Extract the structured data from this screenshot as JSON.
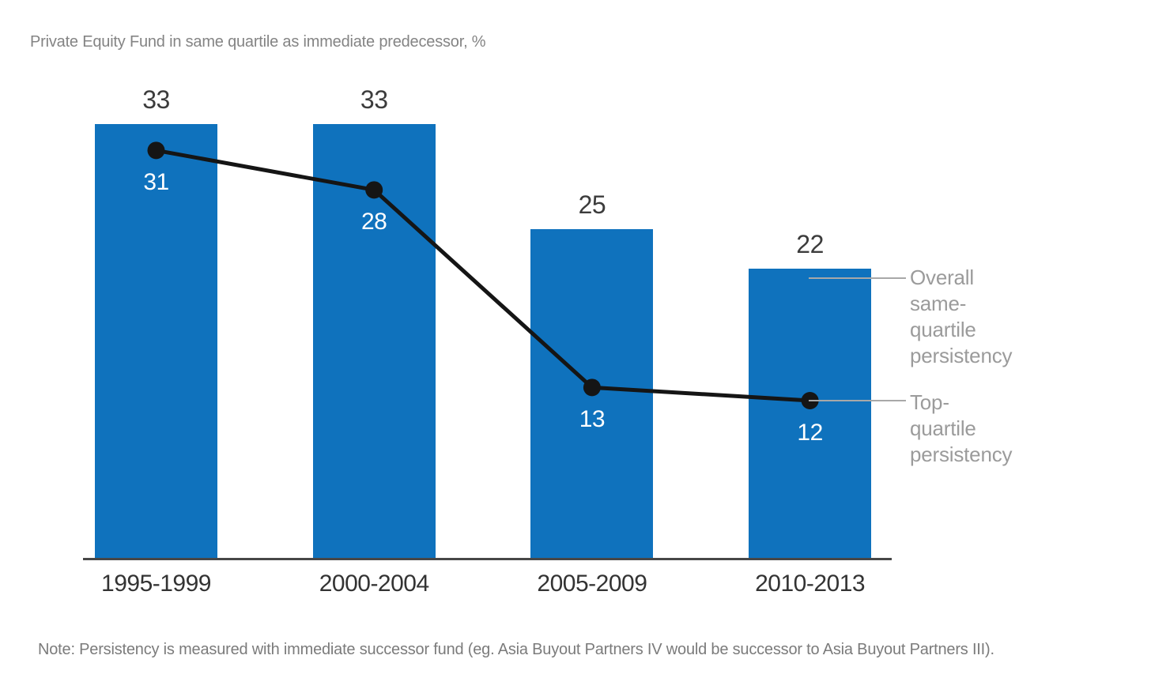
{
  "title": "Private Equity Fund in same quartile as immediate predecessor, %",
  "note": "Note: Persistency is measured with immediate successor fund (eg. Asia Buyout Partners IV would be successor to Asia Buyout Partners III).",
  "colors": {
    "bar": "#0f72bd",
    "line": "#151515",
    "bar_value_text": "#3c3c3c",
    "in_bar_value_text": "#ffffff",
    "axis": "#474747",
    "legend_text": "#9b9b9b",
    "connector": "#a8a8a8",
    "title_text": "#848484",
    "note_text": "#7b7b7b"
  },
  "chart_data": {
    "type": "bar",
    "categories": [
      "1995-1999",
      "2000-2004",
      "2005-2009",
      "2010-2013"
    ],
    "series": [
      {
        "name": "Overall same-quartile persistency",
        "type": "bar",
        "values": [
          33,
          33,
          25,
          22
        ]
      },
      {
        "name": "Top-quartile persistency",
        "type": "line",
        "values": [
          31,
          28,
          13,
          12
        ]
      }
    ],
    "title": "Private Equity Fund in same quartile as immediate predecessor, %",
    "xlabel": "",
    "ylabel": "",
    "ylim": [
      0,
      35
    ],
    "grid": false,
    "legend_position": "right-callouts",
    "bar_value_labels": [
      "33",
      "33",
      "25",
      "22"
    ],
    "line_value_labels": [
      "31",
      "28",
      "13",
      "12"
    ]
  },
  "legend": {
    "overall_label": "Overall same-quartile\npersistency",
    "top_label": "Top-quartile\npersistency"
  }
}
